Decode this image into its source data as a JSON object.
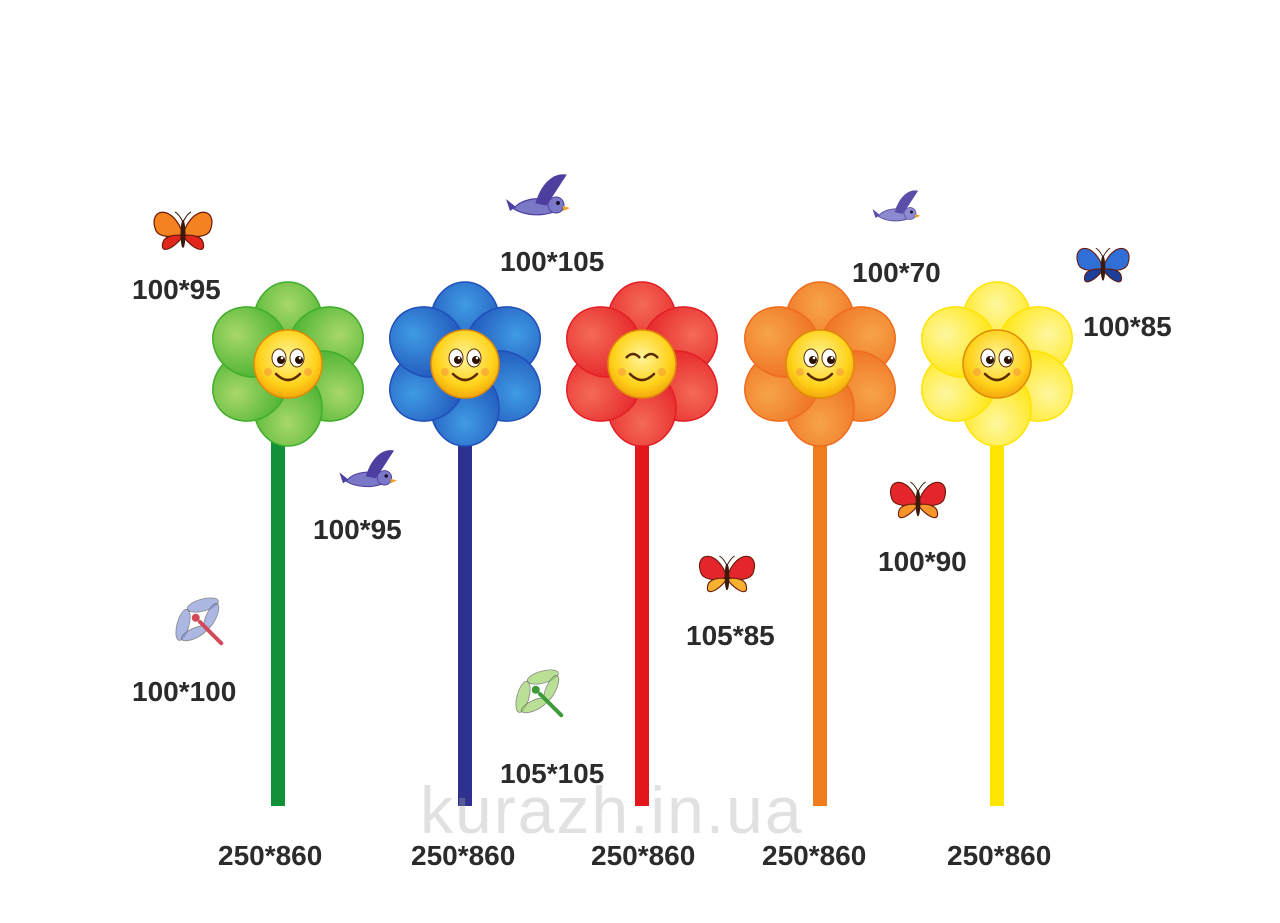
{
  "flowers": [
    {
      "name": "green-flower",
      "size": "250*860",
      "petal": "#3fae2a",
      "petal_light": "#a8d86a",
      "stem": "#11913a"
    },
    {
      "name": "blue-flower",
      "size": "250*860",
      "petal": "#1f4fb8",
      "petal_light": "#3f9be3",
      "stem": "#2e3190"
    },
    {
      "name": "red-flower",
      "size": "250*860",
      "petal": "#e41e26",
      "petal_light": "#f46a55",
      "stem": "#e4161d"
    },
    {
      "name": "orange-flower",
      "size": "250*860",
      "petal": "#ee6c1c",
      "petal_light": "#f7a44a",
      "stem": "#f07c1e"
    },
    {
      "name": "yellow-flower",
      "size": "250*860",
      "petal": "#ffe400",
      "petal_light": "#fff7a0",
      "stem": "#ffe600"
    }
  ],
  "creatures": [
    {
      "name": "butterfly-orange",
      "icon": "butterfly-icon",
      "size": "100*95"
    },
    {
      "name": "bird-purple-top",
      "icon": "bird-icon",
      "size": "100*105"
    },
    {
      "name": "bird-small-top",
      "icon": "bird-icon",
      "size": "100*70"
    },
    {
      "name": "butterfly-blue",
      "icon": "butterfly-icon",
      "size": "100*85"
    },
    {
      "name": "bird-purple-mid",
      "icon": "bird-icon",
      "size": "100*95"
    },
    {
      "name": "butterfly-red",
      "icon": "butterfly-icon",
      "size": "100*90"
    },
    {
      "name": "butterfly-pink",
      "icon": "butterfly-icon",
      "size": "105*85"
    },
    {
      "name": "dragonfly-blue",
      "icon": "dragonfly-icon",
      "size": "100*100"
    },
    {
      "name": "dragonfly-green",
      "icon": "dragonfly-icon",
      "size": "105*105"
    }
  ],
  "watermark": "kurazh.in.ua"
}
